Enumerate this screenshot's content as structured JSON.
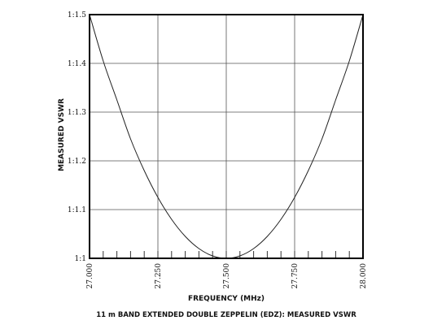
{
  "chart_data": {
    "type": "line",
    "title": "11 m BAND EXTENDED DOUBLE ZEPPELIN (EDZ): MEASURED VSWR",
    "xlabel": "FREQUENCY (MHz)",
    "ylabel": "MEASURED VSWR",
    "xlim": [
      27.0,
      28.0
    ],
    "ylim": [
      1.0,
      1.5
    ],
    "x_ticks": [
      {
        "value": 27.0,
        "label": "27.000"
      },
      {
        "value": 27.25,
        "label": "27.250"
      },
      {
        "value": 27.5,
        "label": "27.500"
      },
      {
        "value": 27.75,
        "label": "27.750"
      },
      {
        "value": 28.0,
        "label": "28.000"
      }
    ],
    "y_ticks": [
      {
        "value": 1.0,
        "label": "1:1"
      },
      {
        "value": 1.1,
        "label": "1:1.1"
      },
      {
        "value": 1.2,
        "label": "1:1.2"
      },
      {
        "value": 1.3,
        "label": "1:1.3"
      },
      {
        "value": 1.4,
        "label": "1:1.4"
      },
      {
        "value": 1.5,
        "label": "1:1.5"
      }
    ],
    "minor_x_step": 0.05,
    "grid": true,
    "line_color": "#222222",
    "series": [
      {
        "x": [
          27.0,
          27.05,
          27.1,
          27.15,
          27.2,
          27.25,
          27.3,
          27.35,
          27.4,
          27.45,
          27.5,
          27.55,
          27.6,
          27.65,
          27.7,
          27.75,
          27.8,
          27.85,
          27.9,
          27.95,
          28.0
        ],
        "values": [
          1.5,
          1.405,
          1.325,
          1.245,
          1.18,
          1.125,
          1.08,
          1.045,
          1.02,
          1.005,
          1.0,
          1.005,
          1.02,
          1.045,
          1.08,
          1.125,
          1.18,
          1.245,
          1.325,
          1.405,
          1.5
        ]
      }
    ]
  }
}
